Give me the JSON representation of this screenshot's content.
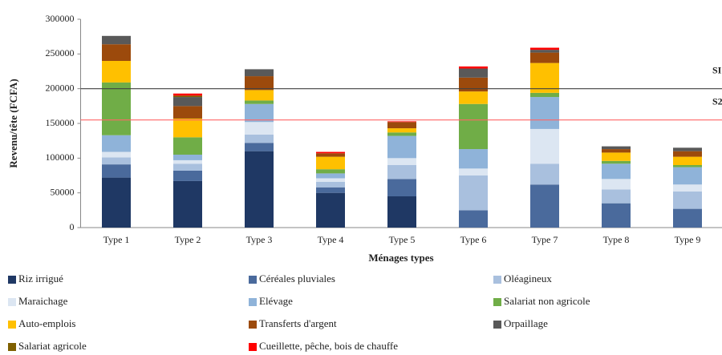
{
  "chart_data": {
    "type": "stacked_bar",
    "xlabel": "Ménages types",
    "ylabel": "Revenu/tête (FCFA)",
    "categories": [
      "Type 1",
      "Type 2",
      "Type 3",
      "Type 4",
      "Type 5",
      "Type 6",
      "Type 7",
      "Type 8",
      "Type 9"
    ],
    "series": [
      {
        "name": "Riz irrigué",
        "color": "#1f3864",
        "values": [
          72000,
          67000,
          110000,
          50000,
          45000,
          0,
          0,
          0,
          0
        ]
      },
      {
        "name": "Céréales pluviales",
        "color": "#4a6a9c",
        "values": [
          19000,
          15000,
          12000,
          8000,
          25000,
          25000,
          62000,
          35000,
          27000
        ]
      },
      {
        "name": "Oléagineux",
        "color": "#a9c0de",
        "values": [
          10000,
          10000,
          12000,
          8000,
          20000,
          50000,
          30000,
          20000,
          25000
        ]
      },
      {
        "name": "Maraichage",
        "color": "#dce6f2",
        "values": [
          8000,
          5000,
          18000,
          5000,
          10000,
          10000,
          50000,
          15000,
          10000
        ]
      },
      {
        "name": "Elévage",
        "color": "#8fb3d9",
        "values": [
          24000,
          8000,
          26000,
          7000,
          32000,
          28000,
          46000,
          22000,
          25000
        ]
      },
      {
        "name": "Salariat non agricole",
        "color": "#70ad47",
        "values": [
          76000,
          25000,
          5000,
          6000,
          5000,
          65000,
          6000,
          4000,
          3000
        ]
      },
      {
        "name": "Auto-emplois",
        "color": "#ffc000",
        "values": [
          31000,
          27000,
          15000,
          18000,
          6000,
          18000,
          43000,
          12000,
          12000
        ]
      },
      {
        "name": "Transferts d'argent",
        "color": "#9c4a0c",
        "values": [
          24000,
          18000,
          20000,
          5000,
          9000,
          20000,
          15000,
          5000,
          8000
        ]
      },
      {
        "name": "Orpaillage",
        "color": "#595959",
        "values": [
          12000,
          13000,
          10000,
          0,
          0,
          13000,
          4000,
          4000,
          5000
        ]
      },
      {
        "name": "Salariat agricole",
        "color": "#7f6000",
        "values": [
          0,
          2000,
          0,
          0,
          0,
          0,
          0,
          0,
          0
        ]
      },
      {
        "name": "Cueillette, pêche, bois de chauffe",
        "color": "#ff0000",
        "values": [
          0,
          3000,
          0,
          2000,
          1000,
          3000,
          3000,
          0,
          0
        ]
      }
    ],
    "reference_lines": [
      {
        "label": "SI",
        "value": 200000,
        "color": "#404040"
      },
      {
        "label": "S2",
        "value": 155000,
        "color": "#ff6666"
      }
    ],
    "ylim": [
      0,
      300000
    ],
    "yticks": [
      0,
      50000,
      100000,
      150000,
      200000,
      250000,
      300000
    ],
    "grid": false
  }
}
